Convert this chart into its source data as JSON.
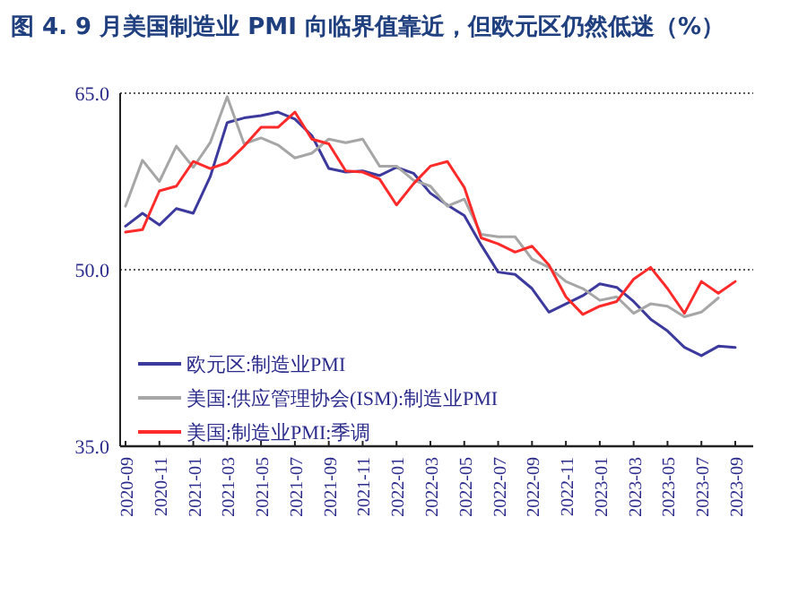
{
  "chart_data": {
    "type": "line",
    "title": "图 4. 9 月美国制造业 PMI 向临界值靠近，但欧元区仍然低迷（%）",
    "categories": [
      "2020-09",
      null,
      "2020-11",
      null,
      "2021-01",
      null,
      "2021-03",
      null,
      "2021-05",
      null,
      "2021-07",
      null,
      "2021-09",
      null,
      "2021-11",
      null,
      "2022-01",
      null,
      "2022-03",
      null,
      "2022-05",
      null,
      "2022-07",
      null,
      "2022-09",
      null,
      "2022-11",
      null,
      "2023-01",
      null,
      "2023-03",
      null,
      "2023-05",
      null,
      "2023-07",
      null,
      "2023-09"
    ],
    "series": [
      {
        "name": "欧元区:制造业PMI",
        "color": "#3d3a9e",
        "values": [
          53.7,
          54.8,
          53.8,
          55.2,
          54.8,
          57.9,
          62.5,
          62.9,
          63.1,
          63.4,
          62.8,
          61.4,
          58.6,
          58.3,
          58.4,
          58.0,
          58.7,
          58.2,
          56.5,
          55.5,
          54.6,
          52.1,
          49.8,
          49.6,
          48.4,
          46.4,
          47.1,
          47.8,
          48.8,
          48.5,
          47.3,
          45.8,
          44.8,
          43.4,
          42.7,
          43.5,
          43.4
        ]
      },
      {
        "name": "美国:供应管理协会(ISM):制造业PMI",
        "color": "#a6a6a6",
        "values": [
          55.4,
          59.3,
          57.5,
          60.5,
          58.7,
          60.8,
          64.7,
          60.7,
          61.2,
          60.6,
          59.5,
          59.9,
          61.1,
          60.8,
          61.1,
          58.8,
          58.8,
          57.6,
          57.1,
          55.4,
          56.0,
          53.0,
          52.8,
          52.8,
          50.9,
          50.2,
          49.0,
          48.4,
          47.4,
          47.7,
          46.3,
          47.1,
          46.9,
          46.0,
          46.4,
          47.6,
          null
        ]
      },
      {
        "name": "美国:制造业PMI:季调",
        "color": "#ff2b2b",
        "values": [
          53.2,
          53.4,
          56.7,
          57.1,
          59.2,
          58.6,
          59.1,
          60.5,
          62.1,
          62.1,
          63.4,
          61.1,
          60.7,
          58.4,
          58.3,
          57.7,
          55.5,
          57.3,
          58.8,
          59.2,
          57.0,
          52.7,
          52.2,
          51.5,
          52.0,
          50.4,
          47.7,
          46.2,
          46.9,
          47.3,
          49.2,
          50.2,
          48.4,
          46.3,
          49.0,
          48.0,
          49.0
        ]
      }
    ],
    "ylim": [
      35,
      65
    ],
    "yticks": [
      {
        "value": 35,
        "label": "35.0"
      },
      {
        "value": 50,
        "label": "50.0"
      },
      {
        "value": 65,
        "label": "65.0"
      }
    ],
    "grid": "y",
    "legend": "bottom left"
  }
}
